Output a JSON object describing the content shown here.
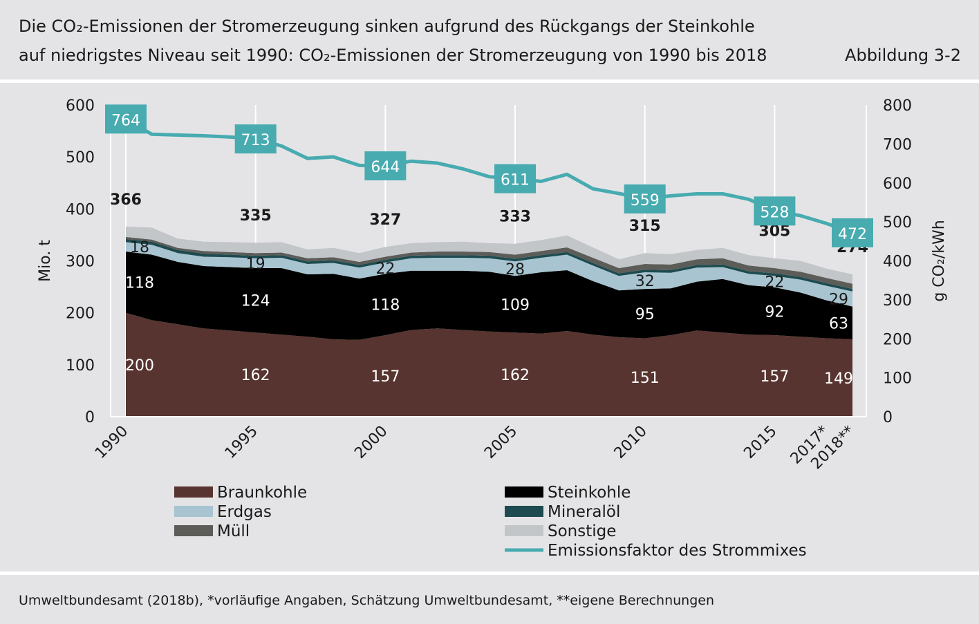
{
  "header": {
    "title_line1": "Die CO₂-Emissionen der Stromerzeugung sinken aufgrund des Rückgangs der Steinkohle",
    "title_line2": "auf niedrigstes Niveau seit 1990: CO₂-Emissionen der Stromerzeugung von 1990 bis 2018",
    "figure_label": "Abbildung 3-2"
  },
  "footer": {
    "source": "Umweltbundesamt (2018b), *vorläufige Angaben, Schätzung Umweltbundesamt, **eigene Berechnungen"
  },
  "chart_data": {
    "type": "area",
    "ylabel_left": "Mio. t",
    "ylabel_right": "g CO₂/kWh",
    "ylim_left": [
      0,
      600
    ],
    "ylim_right": [
      0,
      800
    ],
    "yticks_left": [
      0,
      100,
      200,
      300,
      400,
      500,
      600
    ],
    "yticks_right": [
      0,
      100,
      200,
      300,
      400,
      500,
      600,
      700,
      800
    ],
    "grid": "vertical only",
    "x": [
      1990,
      1991,
      1992,
      1993,
      1994,
      1995,
      1996,
      1997,
      1998,
      1999,
      2000,
      2001,
      2002,
      2003,
      2004,
      2005,
      2006,
      2007,
      2008,
      2009,
      2010,
      2011,
      2012,
      2013,
      2014,
      2015,
      2016,
      2017,
      2018
    ],
    "xtick_labels": [
      {
        "x": 1990,
        "label": "1990"
      },
      {
        "x": 1995,
        "label": "1995"
      },
      {
        "x": 2000,
        "label": "2000"
      },
      {
        "x": 2005,
        "label": "2005"
      },
      {
        "x": 2010,
        "label": "2010"
      },
      {
        "x": 2015,
        "label": "2015"
      },
      {
        "x": 2017,
        "label": "2017*"
      },
      {
        "x": 2018,
        "label": "2018**"
      }
    ],
    "series": [
      {
        "name": "Braunkohle",
        "color": "#57342f",
        "values": [
          200,
          186,
          178,
          170,
          166,
          162,
          158,
          154,
          149,
          148,
          157,
          167,
          170,
          167,
          164,
          162,
          160,
          165,
          158,
          153,
          151,
          157,
          166,
          162,
          158,
          157,
          154,
          151,
          149
        ]
      },
      {
        "name": "Steinkohle",
        "color": "#000000",
        "values": [
          118,
          126,
          120,
          120,
          122,
          124,
          128,
          120,
          126,
          118,
          118,
          114,
          111,
          114,
          115,
          109,
          118,
          117,
          103,
          90,
          95,
          90,
          94,
          103,
          95,
          92,
          85,
          73,
          63
        ]
      },
      {
        "name": "Erdgas",
        "color": "#a7c4d0",
        "values": [
          18,
          19,
          17,
          18,
          19,
          19,
          20,
          20,
          21,
          21,
          22,
          24,
          25,
          25,
          26,
          28,
          28,
          30,
          30,
          28,
          32,
          30,
          27,
          23,
          22,
          22,
          25,
          28,
          29
        ]
      },
      {
        "name": "Mineralöl",
        "color": "#1d4b4f",
        "values": [
          6,
          6,
          6,
          6,
          5,
          5,
          5,
          5,
          5,
          5,
          5,
          5,
          5,
          5,
          5,
          5,
          5,
          5,
          5,
          5,
          5,
          5,
          5,
          5,
          5,
          5,
          5,
          5,
          5
        ]
      },
      {
        "name": "Müll",
        "color": "#5c5c58",
        "values": [
          4,
          4,
          4,
          5,
          5,
          5,
          5,
          6,
          6,
          6,
          6,
          6,
          7,
          7,
          7,
          8,
          8,
          9,
          10,
          10,
          11,
          11,
          11,
          12,
          11,
          10,
          10,
          10,
          10
        ]
      },
      {
        "name": "Sonstige",
        "color": "#c2c6c9",
        "values": [
          20,
          23,
          18,
          18,
          19,
          20,
          20,
          17,
          18,
          17,
          19,
          18,
          18,
          19,
          17,
          21,
          21,
          23,
          20,
          17,
          21,
          20,
          18,
          20,
          20,
          19,
          21,
          18,
          18
        ]
      }
    ],
    "totals": [
      {
        "x": 1990,
        "value": "366"
      },
      {
        "x": 1995,
        "value": "335"
      },
      {
        "x": 2000,
        "value": "327"
      },
      {
        "x": 2005,
        "value": "333"
      },
      {
        "x": 2010,
        "value": "315"
      },
      {
        "x": 2015,
        "value": "305"
      },
      {
        "x": 2018,
        "value": "274"
      }
    ],
    "segment_labels": [
      {
        "series": "Braunkohle",
        "x": 1990,
        "value": "200"
      },
      {
        "series": "Braunkohle",
        "x": 1995,
        "value": "162"
      },
      {
        "series": "Braunkohle",
        "x": 2000,
        "value": "157"
      },
      {
        "series": "Braunkohle",
        "x": 2005,
        "value": "162"
      },
      {
        "series": "Braunkohle",
        "x": 2010,
        "value": "151"
      },
      {
        "series": "Braunkohle",
        "x": 2015,
        "value": "157"
      },
      {
        "series": "Braunkohle",
        "x": 2018,
        "value": "149"
      },
      {
        "series": "Steinkohle",
        "x": 1990,
        "value": "118"
      },
      {
        "series": "Steinkohle",
        "x": 1995,
        "value": "124"
      },
      {
        "series": "Steinkohle",
        "x": 2000,
        "value": "118"
      },
      {
        "series": "Steinkohle",
        "x": 2005,
        "value": "109"
      },
      {
        "series": "Steinkohle",
        "x": 2010,
        "value": "95"
      },
      {
        "series": "Steinkohle",
        "x": 2015,
        "value": "92"
      },
      {
        "series": "Steinkohle",
        "x": 2018,
        "value": "63"
      },
      {
        "series": "Erdgas",
        "x": 1990,
        "value": "18"
      },
      {
        "series": "Erdgas",
        "x": 1995,
        "value": "19"
      },
      {
        "series": "Erdgas",
        "x": 2000,
        "value": "22"
      },
      {
        "series": "Erdgas",
        "x": 2005,
        "value": "28"
      },
      {
        "series": "Erdgas",
        "x": 2010,
        "value": "32"
      },
      {
        "series": "Erdgas",
        "x": 2015,
        "value": "22"
      },
      {
        "series": "Erdgas",
        "x": 2018,
        "value": "29"
      }
    ],
    "line_series": {
      "name": "Emissionsfaktor des Strommixes",
      "color": "#47abb0",
      "axis": "right",
      "values": [
        764,
        725,
        723,
        721,
        718,
        713,
        695,
        663,
        667,
        645,
        644,
        656,
        651,
        636,
        616,
        611,
        604,
        622,
        585,
        573,
        559,
        567,
        572,
        572,
        558,
        528,
        516,
        496,
        472
      ],
      "labeled_points": [
        {
          "x": 1990,
          "value": "764"
        },
        {
          "x": 1995,
          "value": "713"
        },
        {
          "x": 2000,
          "value": "644"
        },
        {
          "x": 2005,
          "value": "611"
        },
        {
          "x": 2010,
          "value": "559"
        },
        {
          "x": 2015,
          "value": "528"
        },
        {
          "x": 2018,
          "value": "472"
        }
      ]
    },
    "legend": [
      {
        "name": "Braunkohle",
        "color": "#57342f",
        "kind": "area"
      },
      {
        "name": "Steinkohle",
        "color": "#000000",
        "kind": "area"
      },
      {
        "name": "Erdgas",
        "color": "#a7c4d0",
        "kind": "area"
      },
      {
        "name": "Mineralöl",
        "color": "#1d4b4f",
        "kind": "area"
      },
      {
        "name": "Müll",
        "color": "#5c5c58",
        "kind": "area"
      },
      {
        "name": "Sonstige",
        "color": "#c2c6c9",
        "kind": "area"
      },
      {
        "name": "Emissionsfaktor des Strommixes",
        "color": "#47abb0",
        "kind": "line"
      }
    ],
    "legend_placement": "bottom"
  }
}
